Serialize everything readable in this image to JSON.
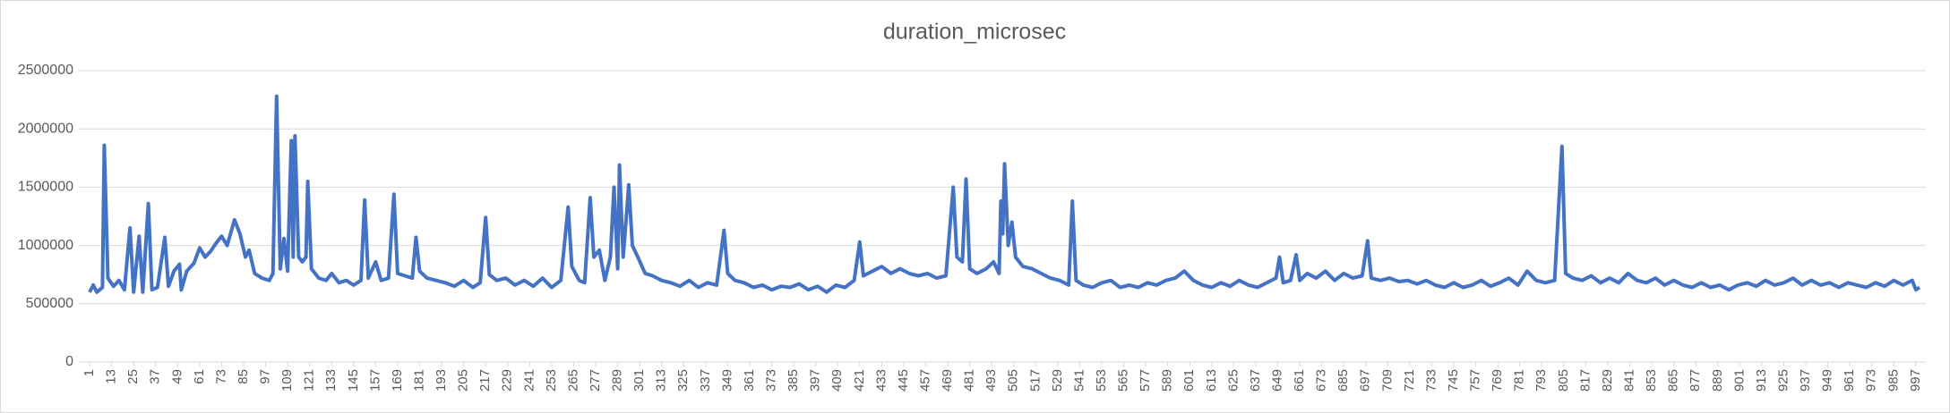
{
  "chart_data": {
    "type": "line",
    "title": "duration_microsec",
    "x": [
      1,
      3,
      5,
      8,
      9,
      11,
      14,
      17,
      20,
      23,
      25,
      28,
      30,
      33,
      35,
      38,
      42,
      44,
      47,
      50,
      51,
      54,
      58,
      61,
      64,
      67,
      70,
      73,
      76,
      80,
      83,
      86,
      88,
      91,
      95,
      99,
      101,
      103,
      105,
      107,
      109,
      111,
      112,
      113,
      115,
      117,
      119,
      120,
      122,
      126,
      130,
      133,
      137,
      141,
      145,
      149,
      151,
      153,
      157,
      160,
      164,
      167,
      169,
      173,
      177,
      179,
      181,
      185,
      190,
      195,
      200,
      205,
      210,
      214,
      217,
      219,
      223,
      228,
      233,
      238,
      243,
      248,
      253,
      258,
      262,
      264,
      268,
      271,
      274,
      276,
      279,
      282,
      285,
      287,
      289,
      290,
      292,
      294,
      295,
      297,
      300,
      304,
      308,
      313,
      318,
      323,
      328,
      333,
      338,
      343,
      347,
      349,
      353,
      358,
      363,
      368,
      373,
      378,
      383,
      388,
      393,
      398,
      403,
      408,
      413,
      418,
      421,
      423,
      428,
      433,
      438,
      443,
      448,
      453,
      458,
      463,
      468,
      472,
      474,
      477,
      479,
      481,
      485,
      490,
      494,
      497,
      498,
      499,
      500,
      502,
      504,
      506,
      510,
      515,
      520,
      525,
      530,
      535,
      537,
      539,
      543,
      548,
      553,
      558,
      563,
      568,
      573,
      578,
      583,
      588,
      593,
      598,
      603,
      608,
      613,
      618,
      623,
      628,
      633,
      638,
      643,
      648,
      650,
      652,
      656,
      659,
      661,
      665,
      670,
      675,
      680,
      685,
      690,
      695,
      698,
      700,
      705,
      710,
      715,
      720,
      725,
      730,
      735,
      740,
      745,
      750,
      755,
      760,
      765,
      770,
      775,
      780,
      785,
      790,
      795,
      800,
      804,
      806,
      810,
      815,
      820,
      825,
      830,
      835,
      840,
      845,
      850,
      855,
      860,
      865,
      870,
      875,
      880,
      885,
      890,
      895,
      900,
      905,
      910,
      915,
      920,
      925,
      930,
      935,
      940,
      945,
      950,
      955,
      960,
      965,
      970,
      975,
      980,
      985,
      990,
      995,
      997,
      999
    ],
    "series": [
      {
        "name": "duration_microsec",
        "color": "#4472c4",
        "values": [
          600000,
          660000,
          600000,
          640000,
          1860000,
          720000,
          650000,
          700000,
          620000,
          1150000,
          600000,
          1080000,
          600000,
          1360000,
          620000,
          640000,
          1070000,
          650000,
          780000,
          840000,
          620000,
          780000,
          850000,
          980000,
          900000,
          950000,
          1020000,
          1080000,
          1000000,
          1220000,
          1100000,
          900000,
          960000,
          760000,
          720000,
          700000,
          760000,
          2280000,
          800000,
          1060000,
          780000,
          1900000,
          900000,
          1940000,
          900000,
          860000,
          900000,
          1550000,
          800000,
          720000,
          700000,
          760000,
          680000,
          700000,
          660000,
          700000,
          1390000,
          720000,
          860000,
          700000,
          720000,
          1440000,
          760000,
          740000,
          720000,
          1070000,
          780000,
          720000,
          700000,
          680000,
          650000,
          700000,
          640000,
          680000,
          1240000,
          750000,
          700000,
          720000,
          660000,
          700000,
          650000,
          720000,
          640000,
          700000,
          1330000,
          820000,
          700000,
          680000,
          1410000,
          900000,
          960000,
          700000,
          900000,
          1500000,
          800000,
          1690000,
          900000,
          1300000,
          1520000,
          1000000,
          900000,
          760000,
          740000,
          700000,
          680000,
          650000,
          700000,
          640000,
          680000,
          660000,
          1130000,
          760000,
          700000,
          680000,
          640000,
          660000,
          620000,
          650000,
          640000,
          670000,
          620000,
          650000,
          600000,
          660000,
          640000,
          700000,
          1030000,
          740000,
          780000,
          820000,
          760000,
          800000,
          760000,
          740000,
          760000,
          720000,
          740000,
          1500000,
          900000,
          860000,
          1570000,
          800000,
          760000,
          800000,
          860000,
          760000,
          1380000,
          1100000,
          1700000,
          1000000,
          1200000,
          900000,
          820000,
          800000,
          760000,
          720000,
          700000,
          660000,
          1380000,
          700000,
          660000,
          640000,
          680000,
          700000,
          640000,
          660000,
          640000,
          680000,
          660000,
          700000,
          720000,
          780000,
          700000,
          660000,
          640000,
          680000,
          650000,
          700000,
          660000,
          640000,
          680000,
          720000,
          900000,
          680000,
          700000,
          920000,
          700000,
          760000,
          720000,
          780000,
          700000,
          760000,
          720000,
          740000,
          1040000,
          720000,
          700000,
          720000,
          690000,
          700000,
          670000,
          700000,
          660000,
          640000,
          680000,
          640000,
          660000,
          700000,
          650000,
          680000,
          720000,
          660000,
          780000,
          700000,
          680000,
          700000,
          1850000,
          760000,
          720000,
          700000,
          740000,
          680000,
          720000,
          680000,
          760000,
          700000,
          680000,
          720000,
          660000,
          700000,
          660000,
          640000,
          680000,
          640000,
          660000,
          620000,
          660000,
          680000,
          650000,
          700000,
          660000,
          680000,
          720000,
          660000,
          700000,
          660000,
          680000,
          640000,
          680000,
          660000,
          640000,
          680000,
          650000,
          700000,
          660000,
          700000,
          620000,
          640000
        ]
      }
    ],
    "xlim": [
      0,
      1000
    ],
    "xticks": [
      1,
      13,
      25,
      37,
      49,
      61,
      73,
      85,
      97,
      109,
      121,
      133,
      145,
      157,
      169,
      181,
      193,
      205,
      217,
      229,
      241,
      253,
      265,
      277,
      289,
      301,
      313,
      325,
      337,
      349,
      361,
      373,
      385,
      397,
      409,
      421,
      433,
      445,
      457,
      469,
      481,
      493,
      505,
      517,
      529,
      541,
      553,
      565,
      577,
      589,
      601,
      613,
      625,
      637,
      649,
      661,
      673,
      685,
      697,
      709,
      721,
      733,
      745,
      757,
      769,
      781,
      793,
      805,
      817,
      829,
      841,
      853,
      865,
      877,
      889,
      901,
      913,
      925,
      937,
      949,
      961,
      973,
      985,
      997
    ],
    "ylim": [
      0,
      2500000
    ],
    "yticks": [
      0,
      500000,
      1000000,
      1500000,
      2000000,
      2500000
    ],
    "grid": true
  }
}
